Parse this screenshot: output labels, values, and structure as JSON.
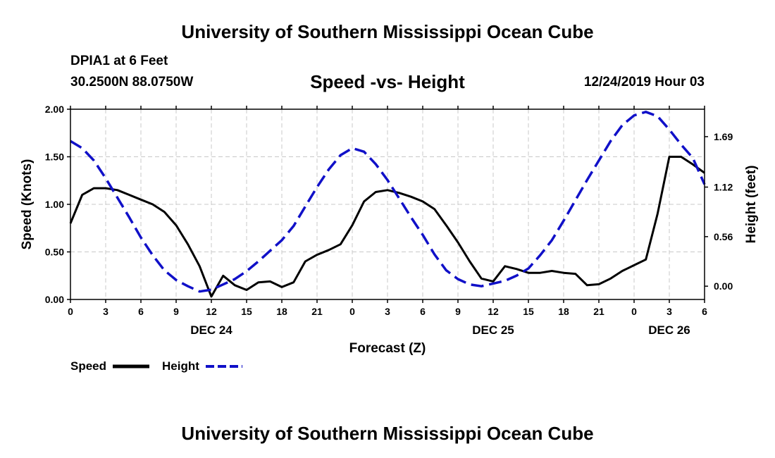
{
  "header": {
    "title": "University of Southern Mississippi Ocean Cube",
    "station": "DPIA1 at 6 Feet",
    "coords": "30.2500N 88.0750W",
    "datetime": "12/24/2019 Hour 03"
  },
  "footer": {
    "title": "University of Southern Mississippi Ocean Cube"
  },
  "colors": {
    "speed": "#000000",
    "height": "#1010c8",
    "grid": "#c8c8c8"
  },
  "chart_data": {
    "type": "line",
    "title": "Speed -vs- Height",
    "xlabel": "Forecast (Z)",
    "ylabel": "Speed (Knots)",
    "y2label": "Height (feet)",
    "xlim": [
      0,
      54
    ],
    "ylim": [
      0,
      2.0
    ],
    "y2lim": [
      -0.15,
      2.0
    ],
    "grid": true,
    "legend_position": "bottom-left",
    "x_ticks": [
      0,
      3,
      6,
      9,
      12,
      15,
      18,
      21,
      24,
      27,
      30,
      33,
      36,
      39,
      42,
      45,
      48,
      51,
      54
    ],
    "x_tick_labels": [
      "0",
      "3",
      "6",
      "9",
      "12",
      "15",
      "18",
      "21",
      "0",
      "3",
      "6",
      "9",
      "12",
      "15",
      "18",
      "21",
      "0",
      "3",
      "6"
    ],
    "day_labels": [
      {
        "x": 12,
        "label": "DEC 24"
      },
      {
        "x": 36,
        "label": "DEC 25"
      },
      {
        "x": 51,
        "label": "DEC 26"
      }
    ],
    "y_ticks": [
      0,
      0.5,
      1.0,
      1.5,
      2.0
    ],
    "y_tick_labels": [
      "0.00",
      "0.50",
      "1.00",
      "1.50",
      "2.00"
    ],
    "y2_ticks": [
      0,
      0.56,
      1.12,
      1.69
    ],
    "y2_tick_labels": [
      "0.00",
      "0.56",
      "1.12",
      "1.69"
    ],
    "series": [
      {
        "name": "Speed",
        "axis": "left",
        "style": "solid",
        "x": [
          0,
          1,
          2,
          3,
          4,
          5,
          6,
          7,
          8,
          9,
          10,
          11,
          12,
          13,
          14,
          15,
          16,
          17,
          18,
          19,
          20,
          21,
          22,
          23,
          24,
          25,
          26,
          27,
          28,
          29,
          30,
          31,
          32,
          33,
          34,
          35,
          36,
          37,
          38,
          39,
          40,
          41,
          42,
          43,
          44,
          45,
          46,
          47,
          48,
          49,
          50,
          51,
          52,
          53,
          54
        ],
        "values": [
          0.8,
          1.1,
          1.17,
          1.17,
          1.15,
          1.1,
          1.05,
          1.0,
          0.92,
          0.78,
          0.58,
          0.35,
          0.03,
          0.25,
          0.15,
          0.1,
          0.18,
          0.19,
          0.13,
          0.18,
          0.4,
          0.47,
          0.52,
          0.58,
          0.78,
          1.03,
          1.13,
          1.15,
          1.12,
          1.08,
          1.03,
          0.95,
          0.78,
          0.6,
          0.4,
          0.22,
          0.19,
          0.35,
          0.32,
          0.28,
          0.28,
          0.3,
          0.28,
          0.27,
          0.15,
          0.16,
          0.22,
          0.3,
          0.36,
          0.42,
          0.9,
          1.5,
          1.5,
          1.42,
          1.33
        ]
      },
      {
        "name": "Height",
        "axis": "right",
        "style": "dashed",
        "x": [
          0,
          1,
          2,
          3,
          4,
          5,
          6,
          7,
          8,
          9,
          10,
          11,
          12,
          13,
          14,
          15,
          16,
          17,
          18,
          19,
          20,
          21,
          22,
          23,
          24,
          25,
          26,
          27,
          28,
          29,
          30,
          31,
          32,
          33,
          34,
          35,
          36,
          37,
          38,
          39,
          40,
          41,
          42,
          43,
          44,
          45,
          46,
          47,
          48,
          49,
          50,
          51,
          52,
          53,
          54
        ],
        "values": [
          1.64,
          1.56,
          1.42,
          1.22,
          1.0,
          0.78,
          0.55,
          0.35,
          0.18,
          0.07,
          0.0,
          -0.06,
          -0.04,
          0.02,
          0.08,
          0.17,
          0.28,
          0.4,
          0.52,
          0.68,
          0.9,
          1.12,
          1.32,
          1.48,
          1.56,
          1.52,
          1.38,
          1.2,
          0.99,
          0.78,
          0.58,
          0.36,
          0.18,
          0.08,
          0.02,
          0.0,
          0.03,
          0.06,
          0.12,
          0.2,
          0.35,
          0.52,
          0.74,
          0.97,
          1.2,
          1.42,
          1.64,
          1.82,
          1.93,
          1.97,
          1.92,
          1.77,
          1.6,
          1.45,
          1.15
        ]
      }
    ]
  }
}
